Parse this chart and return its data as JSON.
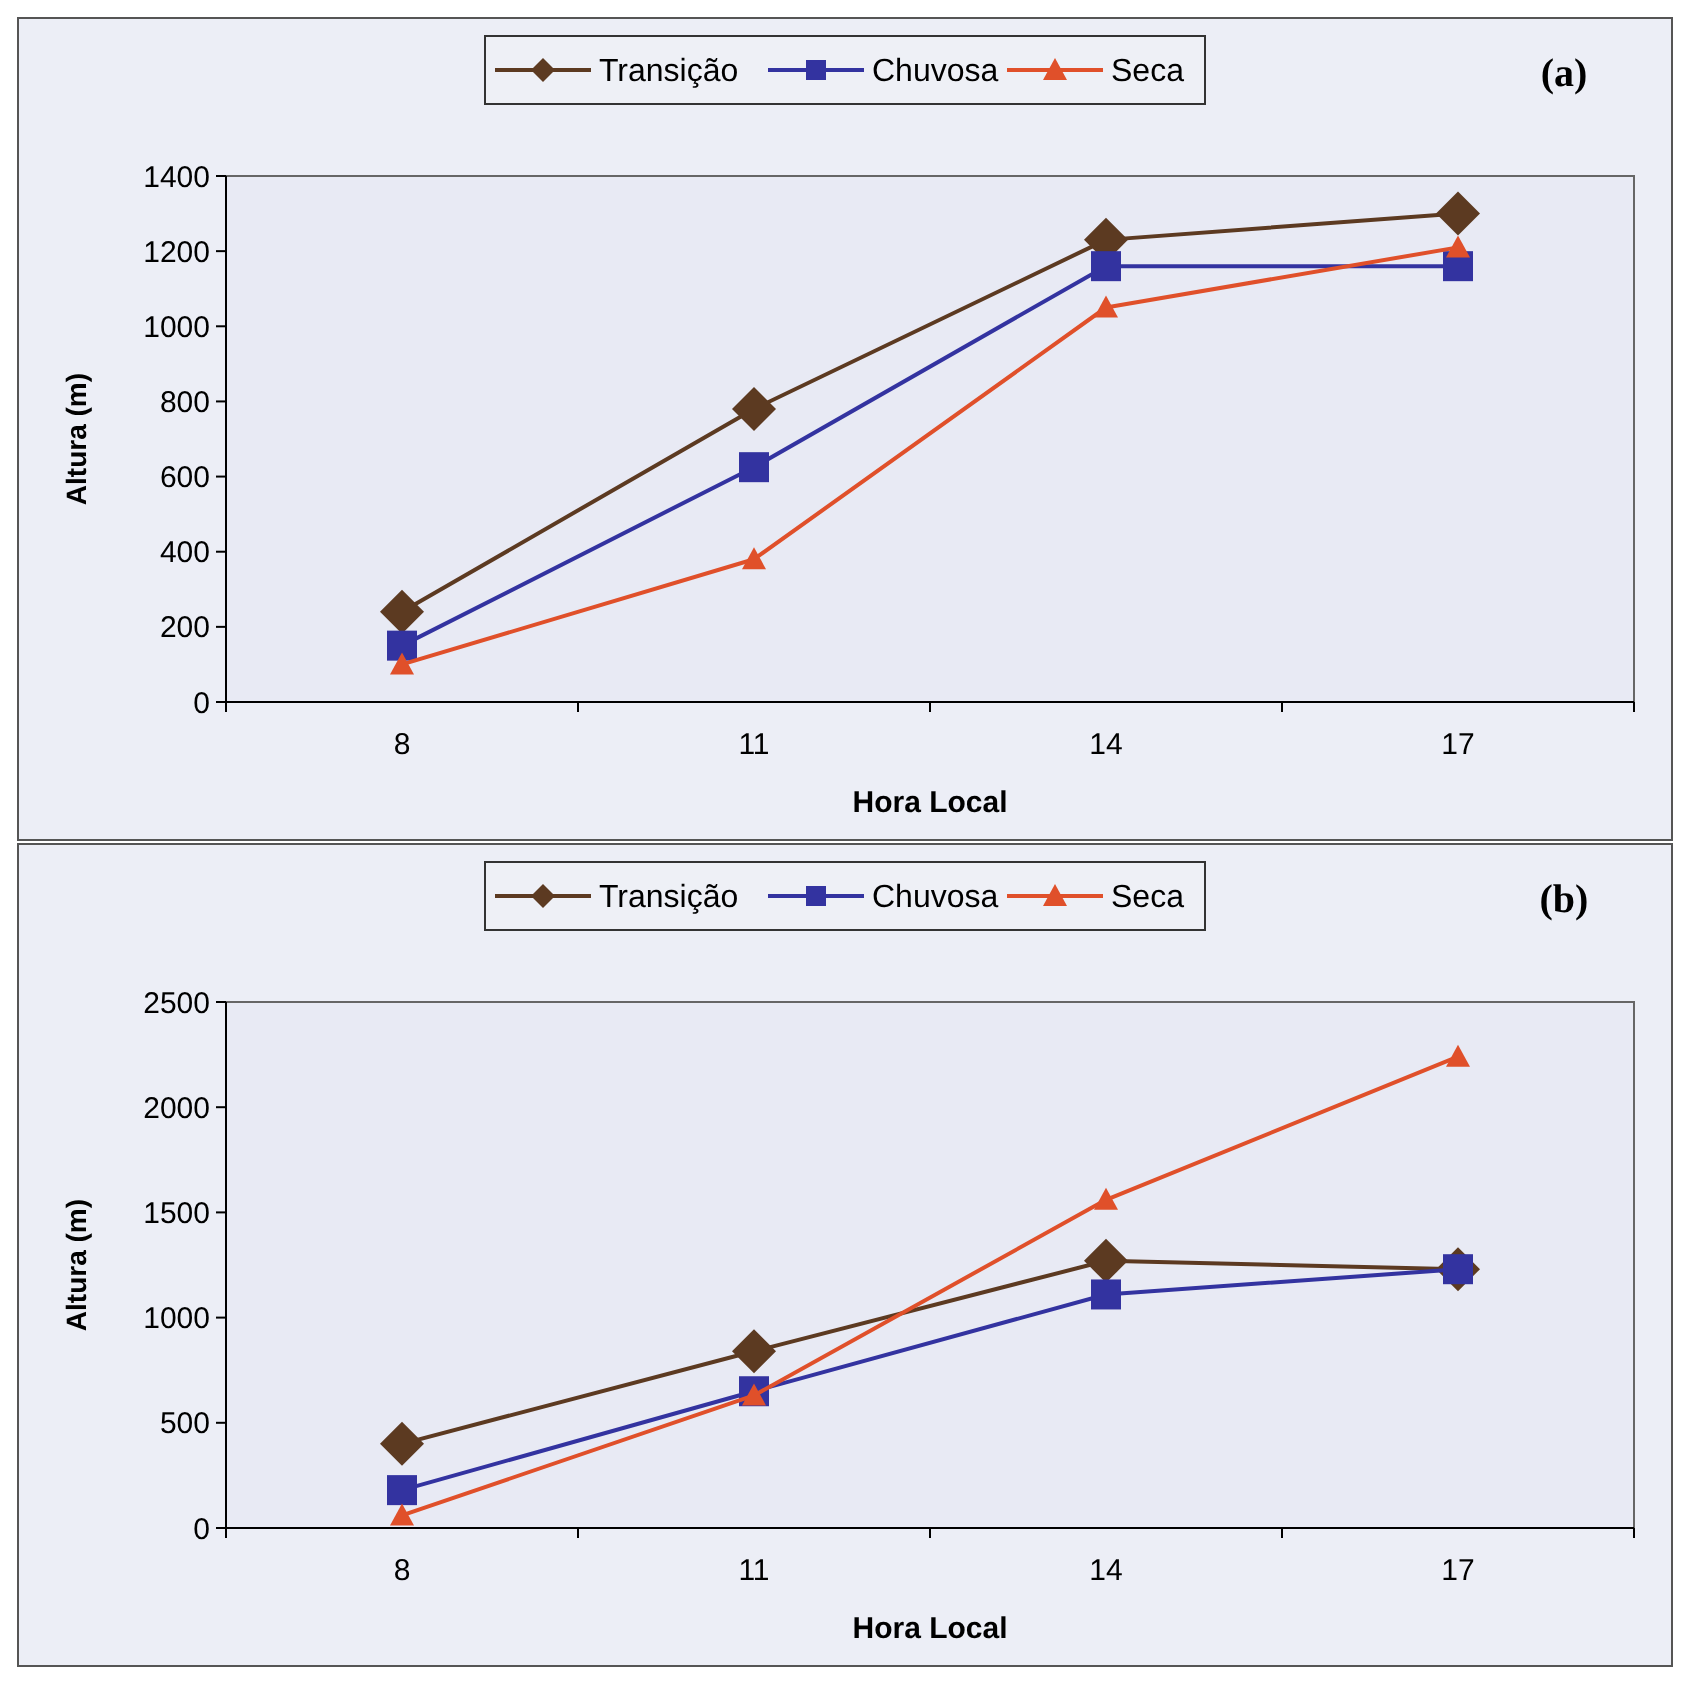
{
  "chart_data": [
    {
      "type": "line",
      "xlabel": "Hora Local",
      "ylabel": "Altura (m)",
      "annotations": [
        "(a)"
      ],
      "categories": [
        "8",
        "11",
        "14",
        "17"
      ],
      "ylim": [
        0,
        1400
      ],
      "yticks": [
        0,
        200,
        400,
        600,
        800,
        1000,
        1200,
        1400
      ],
      "grid": false,
      "legend": "top",
      "series": [
        {
          "name": "Transição",
          "color": "#5c3a21",
          "marker": "diamond",
          "values": [
            240,
            780,
            1230,
            1300
          ]
        },
        {
          "name": "Chuvosa",
          "color": "#3333a0",
          "marker": "square",
          "values": [
            150,
            625,
            1160,
            1160
          ]
        },
        {
          "name": "Seca",
          "color": "#e0502a",
          "marker": "triangle",
          "values": [
            100,
            380,
            1050,
            1210
          ]
        }
      ]
    },
    {
      "type": "line",
      "xlabel": "Hora Local",
      "ylabel": "Altura (m)",
      "annotations": [
        "(b)"
      ],
      "categories": [
        "8",
        "11",
        "14",
        "17"
      ],
      "ylim": [
        0,
        2500
      ],
      "yticks": [
        0,
        500,
        1000,
        1500,
        2000,
        2500
      ],
      "grid": false,
      "legend": "top",
      "series": [
        {
          "name": "Transição",
          "color": "#5c3a21",
          "marker": "diamond",
          "values": [
            400,
            840,
            1270,
            1230
          ]
        },
        {
          "name": "Chuvosa",
          "color": "#3333a0",
          "marker": "square",
          "values": [
            180,
            650,
            1110,
            1230
          ]
        },
        {
          "name": "Seca",
          "color": "#e0502a",
          "marker": "triangle",
          "values": [
            60,
            630,
            1560,
            2240
          ]
        }
      ]
    }
  ]
}
